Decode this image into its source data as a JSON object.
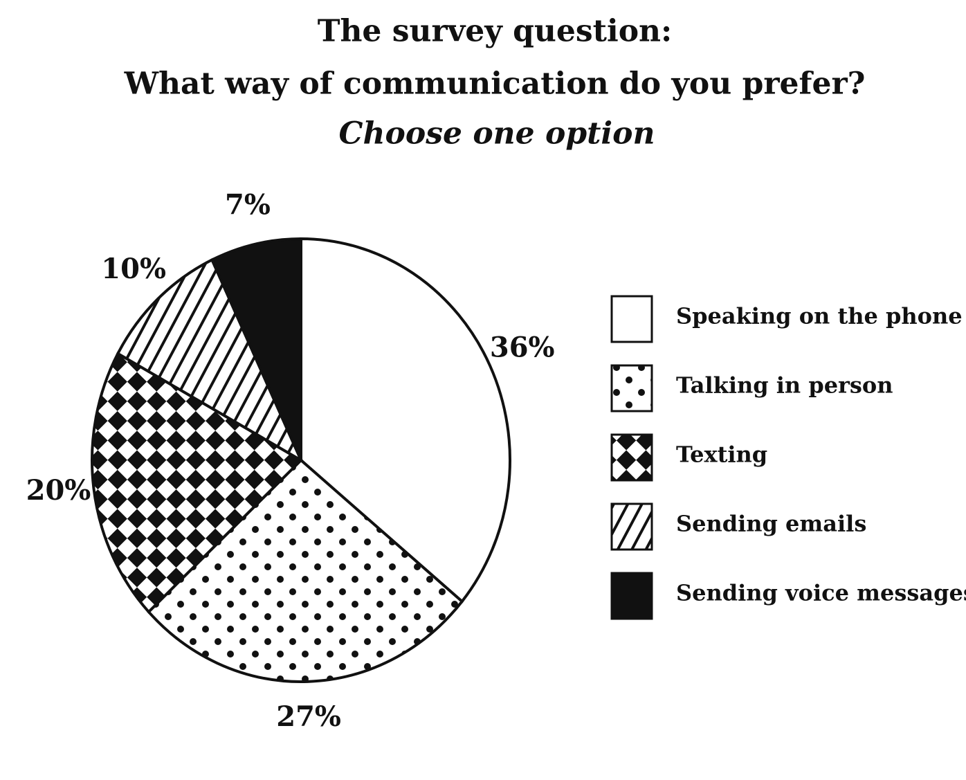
{
  "chart_data": {
    "type": "pie",
    "title": [
      "The survey question:",
      "What way of communication do you prefer?"
    ],
    "subtitle": "Choose one option",
    "categories": [
      "Speaking on the phone",
      "Talking in person",
      "Texting",
      "Sending emails",
      "Sending voice messages"
    ],
    "values": [
      36,
      27,
      20,
      10,
      7
    ],
    "value_labels": [
      "36%",
      "27%",
      "20%",
      "10%",
      "7%"
    ]
  }
}
